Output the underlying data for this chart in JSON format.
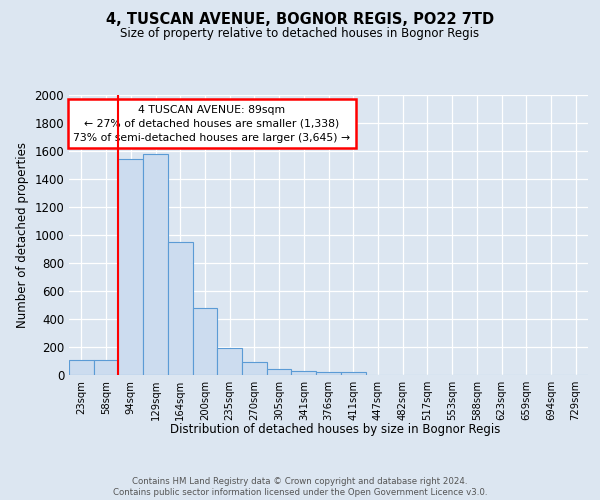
{
  "title1": "4, TUSCAN AVENUE, BOGNOR REGIS, PO22 7TD",
  "title2": "Size of property relative to detached houses in Bognor Regis",
  "xlabel": "Distribution of detached houses by size in Bognor Regis",
  "ylabel": "Number of detached properties",
  "categories": [
    "23sqm",
    "58sqm",
    "94sqm",
    "129sqm",
    "164sqm",
    "200sqm",
    "235sqm",
    "270sqm",
    "305sqm",
    "341sqm",
    "376sqm",
    "411sqm",
    "447sqm",
    "482sqm",
    "517sqm",
    "553sqm",
    "588sqm",
    "623sqm",
    "659sqm",
    "694sqm",
    "729sqm"
  ],
  "values": [
    110,
    110,
    1540,
    1580,
    950,
    480,
    190,
    95,
    45,
    30,
    20,
    20,
    0,
    0,
    0,
    0,
    0,
    0,
    0,
    0,
    0
  ],
  "bar_color": "#ccdcef",
  "bar_edge_color": "#5b9bd5",
  "red_line_bin": 2,
  "annotation_text": "4 TUSCAN AVENUE: 89sqm\n← 27% of detached houses are smaller (1,338)\n73% of semi-detached houses are larger (3,645) →",
  "ylim": [
    0,
    2000
  ],
  "yticks": [
    0,
    200,
    400,
    600,
    800,
    1000,
    1200,
    1400,
    1600,
    1800,
    2000
  ],
  "footer": "Contains HM Land Registry data © Crown copyright and database right 2024.\nContains public sector information licensed under the Open Government Licence v3.0.",
  "bg_color": "#dce6f1",
  "plot_bg_color": "#dce6f1"
}
